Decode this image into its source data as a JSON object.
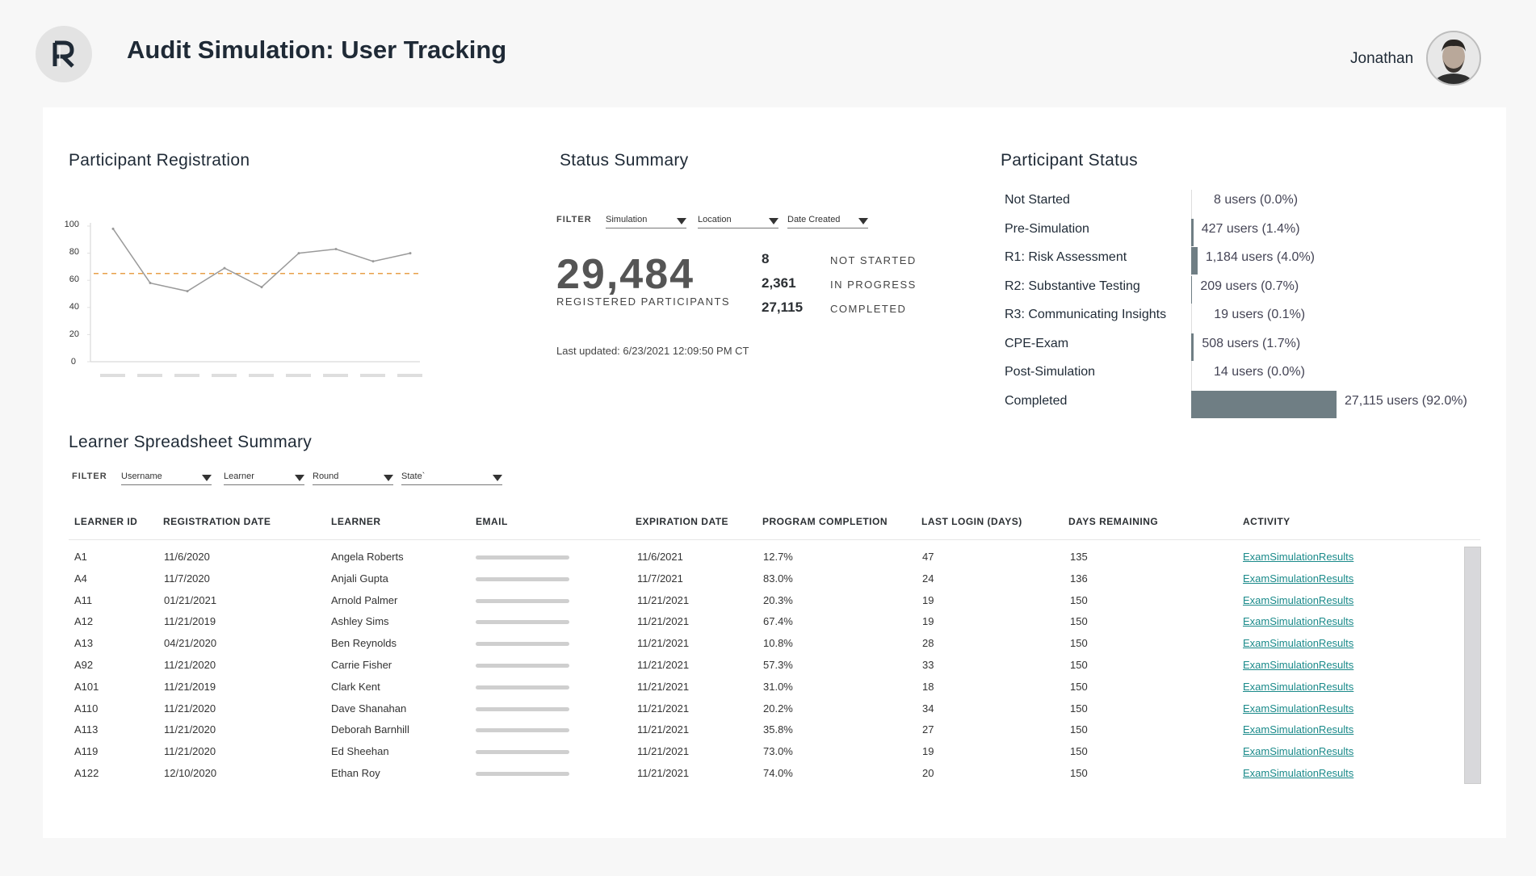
{
  "header": {
    "logo_letter": "R",
    "title": "Audit Simulation: User Tracking",
    "user_name": "Jonathan"
  },
  "registration": {
    "title": "Participant Registration",
    "y_ticks": [
      "100",
      "80",
      "60",
      "40",
      "20",
      "0"
    ]
  },
  "chart_data": {
    "type": "line",
    "title": "Participant Registration",
    "xlabel": "",
    "ylabel": "",
    "ylim": [
      0,
      100
    ],
    "y_ticks": [
      0,
      20,
      40,
      60,
      80,
      100
    ],
    "x": [
      1,
      2,
      3,
      4,
      5,
      6,
      7,
      8,
      9
    ],
    "series": [
      {
        "values": [
          98,
          58,
          52,
          69,
          55,
          80,
          83,
          74,
          80
        ],
        "color": "#9a9a9a"
      }
    ],
    "reference_line": {
      "y": 65,
      "color": "#e8a04a",
      "style": "dashed"
    },
    "grid": false,
    "legend": "none"
  },
  "status_summary": {
    "title": "Status Summary",
    "filter_label": "FILTER",
    "filters": [
      "Simulation",
      "Location",
      "Date Created"
    ],
    "total": "29,484",
    "total_label": "REGISTERED PARTICIPANTS",
    "stats": [
      {
        "value": "8",
        "label": "NOT STARTED"
      },
      {
        "value": "2,361",
        "label": "IN PROGRESS"
      },
      {
        "value": "27,115",
        "label": "COMPLETED"
      }
    ],
    "last_updated": "Last updated: 6/23/2021  12:09:50 PM CT"
  },
  "participant_status": {
    "title": "Participant Status",
    "bar_color": "#6f7e84",
    "rows": [
      {
        "name": "Not Started",
        "value_text": "8 users (0.0%)",
        "percent": 0.0
      },
      {
        "name": "Pre-Simulation",
        "value_text": "427 users (1.4%)",
        "percent": 1.4
      },
      {
        "name": "R1: Risk Assessment",
        "value_text": "1,184 users (4.0%)",
        "percent": 4.0
      },
      {
        "name": "R2: Substantive Testing",
        "value_text": "209 users (0.7%)",
        "percent": 0.7
      },
      {
        "name": "R3: Communicating Insights",
        "value_text": "19 users (0.1%)",
        "percent": 0.1
      },
      {
        "name": "CPE-Exam",
        "value_text": "508 users (1.7%)",
        "percent": 1.7
      },
      {
        "name": "Post-Simulation",
        "value_text": "14 users (0.0%)",
        "percent": 0.0
      },
      {
        "name": "Completed",
        "value_text": "27,115 users (92.0%)",
        "percent": 92.0
      }
    ]
  },
  "learners": {
    "title": "Learner Spreadsheet Summary",
    "filter_label": "FILTER",
    "filters": [
      "Username",
      "Learner",
      "Round",
      "State`"
    ],
    "columns": [
      "LEARNER ID",
      "REGISTRATION DATE",
      "LEARNER",
      "EMAIL",
      "EXPIRATION DATE",
      "PROGRAM COMPLETION",
      "LAST LOGIN (DAYS)",
      "DAYS REMAINING",
      "ACTIVITY"
    ],
    "rows": [
      [
        "A1",
        "11/6/2020",
        "Angela Roberts",
        "",
        "11/6/2021",
        "12.7%",
        "47",
        "135",
        "ExamSimulationResults"
      ],
      [
        "A4",
        "11/7/2020",
        "Anjali Gupta",
        "",
        "11/7/2021",
        "83.0%",
        "24",
        "136",
        "ExamSimulationResults"
      ],
      [
        "A11",
        "01/21/2021",
        "Arnold Palmer",
        "",
        "11/21/2021",
        "20.3%",
        "19",
        "150",
        "ExamSimulationResults"
      ],
      [
        "A12",
        "11/21/2019",
        "Ashley Sims",
        "",
        "11/21/2021",
        "67.4%",
        "19",
        "150",
        "ExamSimulationResults"
      ],
      [
        "A13",
        "04/21/2020",
        "Ben Reynolds",
        "",
        "11/21/2021",
        "10.8%",
        "28",
        "150",
        "ExamSimulationResults"
      ],
      [
        "A92",
        "11/21/2020",
        "Carrie Fisher",
        "",
        "11/21/2021",
        "57.3%",
        "33",
        "150",
        "ExamSimulationResults"
      ],
      [
        "A101",
        "11/21/2019",
        "Clark Kent",
        "",
        "11/21/2021",
        "31.0%",
        "18",
        "150",
        "ExamSimulationResults"
      ],
      [
        "A110",
        "11/21/2020",
        "Dave Shanahan",
        "",
        "11/21/2021",
        "20.2%",
        "34",
        "150",
        "ExamSimulationResults"
      ],
      [
        "A113",
        "11/21/2020",
        "Deborah Barnhill",
        "",
        "11/21/2021",
        "35.8%",
        "27",
        "150",
        "ExamSimulationResults"
      ],
      [
        "A119",
        "11/21/2020",
        "Ed Sheehan",
        "",
        "11/21/2021",
        "73.0%",
        "19",
        "150",
        "ExamSimulationResults"
      ],
      [
        "A122",
        "12/10/2020",
        "Ethan Roy",
        "",
        "11/21/2021",
        "74.0%",
        "20",
        "150",
        "ExamSimulationResults"
      ]
    ]
  }
}
